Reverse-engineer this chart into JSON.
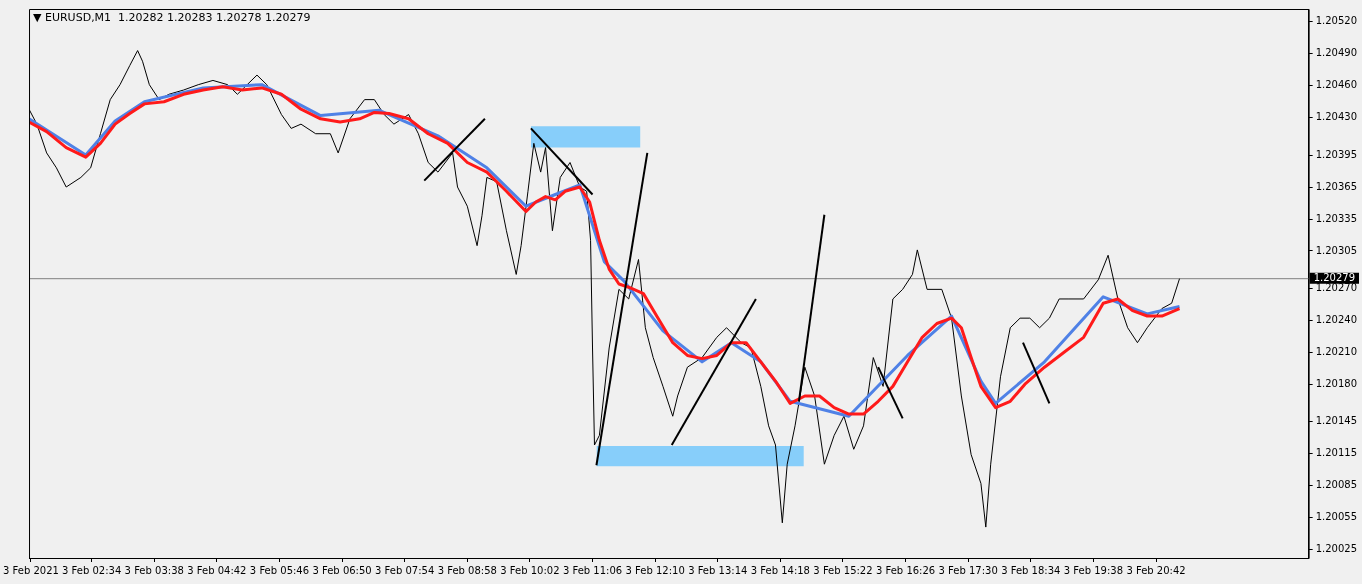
{
  "chart_data": {
    "type": "line",
    "title": "▼ EURUSD,M1  1.20282 1.20283 1.20278 1.20279",
    "xlim": [
      "2021-02-03T01:30",
      "2021-02-03T23:18"
    ],
    "ylim": [
      1.20017,
      1.20532
    ],
    "xticks": [
      {
        "value": "2021-02-03T01:32",
        "label": "3 Feb 2021"
      },
      {
        "value": "2021-02-03T02:34",
        "label": "3 Feb 02:34"
      },
      {
        "value": "2021-02-03T03:38",
        "label": "3 Feb 03:38"
      },
      {
        "value": "2021-02-03T04:42",
        "label": "3 Feb 04:42"
      },
      {
        "value": "2021-02-03T05:46",
        "label": "3 Feb 05:46"
      },
      {
        "value": "2021-02-03T06:50",
        "label": "3 Feb 06:50"
      },
      {
        "value": "2021-02-03T07:54",
        "label": "3 Feb 07:54"
      },
      {
        "value": "2021-02-03T08:58",
        "label": "3 Feb 08:58"
      },
      {
        "value": "2021-02-03T10:02",
        "label": "3 Feb 10:02"
      },
      {
        "value": "2021-02-03T11:06",
        "label": "3 Feb 11:06"
      },
      {
        "value": "2021-02-03T12:10",
        "label": "3 Feb 12:10"
      },
      {
        "value": "2021-02-03T13:14",
        "label": "3 Feb 13:14"
      },
      {
        "value": "2021-02-03T14:18",
        "label": "3 Feb 14:18"
      },
      {
        "value": "2021-02-03T15:22",
        "label": "3 Feb 15:22"
      },
      {
        "value": "2021-02-03T16:26",
        "label": "3 Feb 16:26"
      },
      {
        "value": "2021-02-03T17:30",
        "label": "3 Feb 17:30"
      },
      {
        "value": "2021-02-03T18:34",
        "label": "3 Feb 18:34"
      },
      {
        "value": "2021-02-03T19:38",
        "label": "3 Feb 19:38"
      },
      {
        "value": "2021-02-03T20:42",
        "label": "3 Feb 20:42"
      }
    ],
    "yticks": [
      {
        "value": 1.2052,
        "label": "1.20520"
      },
      {
        "value": 1.2049,
        "label": "1.20490"
      },
      {
        "value": 1.2046,
        "label": "1.20460"
      },
      {
        "value": 1.2043,
        "label": "1.20430"
      },
      {
        "value": 1.20395,
        "label": "1.20395"
      },
      {
        "value": 1.20365,
        "label": "1.20365"
      },
      {
        "value": 1.20335,
        "label": "1.20335"
      },
      {
        "value": 1.20305,
        "label": "1.20305"
      },
      {
        "value": 1.2027,
        "label": "1.20270"
      },
      {
        "value": 1.2024,
        "label": "1.20240"
      },
      {
        "value": 1.2021,
        "label": "1.20210"
      },
      {
        "value": 1.2018,
        "label": "1.20180"
      },
      {
        "value": 1.20145,
        "label": "1.20145"
      },
      {
        "value": 1.20115,
        "label": "1.20115"
      },
      {
        "value": 1.20085,
        "label": "1.20085"
      },
      {
        "value": 1.20055,
        "label": "1.20055"
      },
      {
        "value": 1.20025,
        "label": "1.20025"
      }
    ],
    "grid": false,
    "legend": false,
    "marker": "none",
    "line_style": "solid",
    "ref_lines": [
      {
        "axis": "y",
        "value": 1.20279,
        "label": "1.20279",
        "color": "#808080"
      }
    ],
    "series": [
      {
        "color": "#000000",
        "x": [
          "2021-02-03T01:30",
          "2021-02-03T01:38",
          "2021-02-03T01:48",
          "2021-02-03T01:58",
          "2021-02-03T02:08",
          "2021-02-03T02:23",
          "2021-02-03T02:33",
          "2021-02-03T02:43",
          "2021-02-03T02:53",
          "2021-02-03T03:03",
          "2021-02-03T03:13",
          "2021-02-03T03:21",
          "2021-02-03T03:26",
          "2021-02-03T03:33",
          "2021-02-03T03:43",
          "2021-02-03T03:53",
          "2021-02-03T04:08",
          "2021-02-03T04:23",
          "2021-02-03T04:38",
          "2021-02-03T04:53",
          "2021-02-03T05:03",
          "2021-02-03T05:13",
          "2021-02-03T05:23",
          "2021-02-03T05:33",
          "2021-02-03T05:48",
          "2021-02-03T05:58",
          "2021-02-03T06:08",
          "2021-02-03T06:23",
          "2021-02-03T06:38",
          "2021-02-03T06:46",
          "2021-02-03T06:58",
          "2021-02-03T07:13",
          "2021-02-03T07:23",
          "2021-02-03T07:33",
          "2021-02-03T07:43",
          "2021-02-03T07:58",
          "2021-02-03T08:08",
          "2021-02-03T08:18",
          "2021-02-03T08:28",
          "2021-02-03T08:43",
          "2021-02-03T08:48",
          "2021-02-03T08:58",
          "2021-02-03T09:08",
          "2021-02-03T09:13",
          "2021-02-03T09:18",
          "2021-02-03T09:28",
          "2021-02-03T09:38",
          "2021-02-03T09:48",
          "2021-02-03T09:53",
          "2021-02-03T10:00",
          "2021-02-03T10:06",
          "2021-02-03T10:13",
          "2021-02-03T10:18",
          "2021-02-03T10:25",
          "2021-02-03T10:33",
          "2021-02-03T10:43",
          "2021-02-03T10:53",
          "2021-02-03T11:00",
          "2021-02-03T11:04",
          "2021-02-03T11:06",
          "2021-02-03T11:08",
          "2021-02-03T11:13",
          "2021-02-03T11:23",
          "2021-02-03T11:33",
          "2021-02-03T11:43",
          "2021-02-03T11:53",
          "2021-02-03T12:00",
          "2021-02-03T12:08",
          "2021-02-03T12:18",
          "2021-02-03T12:28",
          "2021-02-03T12:33",
          "2021-02-03T12:43",
          "2021-02-03T12:58",
          "2021-02-03T13:13",
          "2021-02-03T13:23",
          "2021-02-03T13:38",
          "2021-02-03T13:48",
          "2021-02-03T13:58",
          "2021-02-03T14:06",
          "2021-02-03T14:13",
          "2021-02-03T14:20",
          "2021-02-03T14:25",
          "2021-02-03T14:33",
          "2021-02-03T14:43",
          "2021-02-03T14:53",
          "2021-02-03T15:03",
          "2021-02-03T15:13",
          "2021-02-03T15:23",
          "2021-02-03T15:33",
          "2021-02-03T15:43",
          "2021-02-03T15:53",
          "2021-02-03T16:03",
          "2021-02-03T16:13",
          "2021-02-03T16:23",
          "2021-02-03T16:33",
          "2021-02-03T16:38",
          "2021-02-03T16:48",
          "2021-02-03T17:03",
          "2021-02-03T17:13",
          "2021-02-03T17:23",
          "2021-02-03T17:33",
          "2021-02-03T17:43",
          "2021-02-03T17:48",
          "2021-02-03T17:53",
          "2021-02-03T18:03",
          "2021-02-03T18:13",
          "2021-02-03T18:23",
          "2021-02-03T18:33",
          "2021-02-03T18:43",
          "2021-02-03T18:53",
          "2021-02-03T19:03",
          "2021-02-03T19:13",
          "2021-02-03T19:28",
          "2021-02-03T19:43",
          "2021-02-03T19:53",
          "2021-02-03T20:03",
          "2021-02-03T20:13",
          "2021-02-03T20:23",
          "2021-02-03T20:33",
          "2021-02-03T20:48",
          "2021-02-03T20:58",
          "2021-02-03T21:06"
        ],
        "values": [
          1.20438,
          1.20424,
          1.20397,
          1.20383,
          1.20365,
          1.20374,
          1.20383,
          1.20415,
          1.20447,
          1.20461,
          1.20479,
          1.20493,
          1.20483,
          1.20461,
          1.20447,
          1.20452,
          1.20456,
          1.20461,
          1.20465,
          1.20461,
          1.20452,
          1.20461,
          1.2047,
          1.20461,
          1.20433,
          1.2042,
          1.20424,
          1.20415,
          1.20415,
          1.20397,
          1.20429,
          1.20447,
          1.20447,
          1.20433,
          1.20424,
          1.20433,
          1.20415,
          1.20388,
          1.20379,
          1.20397,
          1.20365,
          1.20347,
          1.2031,
          1.20338,
          1.20374,
          1.2037,
          1.20324,
          1.20283,
          1.2031,
          1.20361,
          1.20406,
          1.20379,
          1.20402,
          1.20324,
          1.20374,
          1.20388,
          1.20365,
          1.20361,
          1.20315,
          1.20214,
          1.20123,
          1.20132,
          1.20214,
          1.20269,
          1.2026,
          1.20297,
          1.20233,
          1.20205,
          1.20178,
          1.2015,
          1.20169,
          1.20196,
          1.20205,
          1.20224,
          1.20233,
          1.20219,
          1.20214,
          1.20178,
          1.20141,
          1.20123,
          1.2005,
          1.20105,
          1.20141,
          1.20196,
          1.20169,
          1.20105,
          1.20132,
          1.2015,
          1.20119,
          1.20141,
          1.20205,
          1.20178,
          1.2026,
          1.20269,
          1.20283,
          1.20306,
          1.20269,
          1.20269,
          1.20242,
          1.20169,
          1.20114,
          1.20087,
          1.20046,
          1.20105,
          1.20187,
          1.20233,
          1.20242,
          1.20242,
          1.20233,
          1.20242,
          1.2026,
          1.2026,
          1.2026,
          1.20278,
          1.20301,
          1.2026,
          1.20233,
          1.20219,
          1.20233,
          1.20251,
          1.20256,
          1.20279
        ]
      },
      {
        "color": "#4f81e6",
        "x": [
          "2021-02-03T01:30",
          "2021-02-03T02:28",
          "2021-02-03T02:58",
          "2021-02-03T03:28",
          "2021-02-03T04:28",
          "2021-02-03T05:28",
          "2021-02-03T06:28",
          "2021-02-03T07:28",
          "2021-02-03T08:28",
          "2021-02-03T09:18",
          "2021-02-03T09:58",
          "2021-02-03T10:28",
          "2021-02-03T10:53",
          "2021-02-03T11:18",
          "2021-02-03T11:38",
          "2021-02-03T12:18",
          "2021-02-03T12:58",
          "2021-02-03T13:28",
          "2021-02-03T13:58",
          "2021-02-03T14:28",
          "2021-02-03T15:28",
          "2021-02-03T16:28",
          "2021-02-03T17:13",
          "2021-02-03T17:43",
          "2021-02-03T17:58",
          "2021-02-03T18:48",
          "2021-02-03T19:48",
          "2021-02-03T20:33",
          "2021-02-03T21:06"
        ],
        "values": [
          1.20429,
          1.20395,
          1.20427,
          1.20445,
          1.20458,
          1.20461,
          1.20432,
          1.20437,
          1.20413,
          1.20383,
          1.20347,
          1.20358,
          1.20367,
          1.20295,
          1.20277,
          1.2023,
          1.20201,
          1.20219,
          1.20201,
          1.20164,
          1.2015,
          1.20207,
          1.20244,
          1.20183,
          1.20162,
          1.20201,
          1.20262,
          1.20246,
          1.20253
        ]
      },
      {
        "color": "#ff1a1a",
        "x": [
          "2021-02-03T01:30",
          "2021-02-03T01:48",
          "2021-02-03T02:08",
          "2021-02-03T02:28",
          "2021-02-03T02:43",
          "2021-02-03T02:58",
          "2021-02-03T03:13",
          "2021-02-03T03:28",
          "2021-02-03T03:48",
          "2021-02-03T04:08",
          "2021-02-03T04:28",
          "2021-02-03T04:48",
          "2021-02-03T05:08",
          "2021-02-03T05:28",
          "2021-02-03T05:48",
          "2021-02-03T06:08",
          "2021-02-03T06:28",
          "2021-02-03T06:48",
          "2021-02-03T07:08",
          "2021-02-03T07:23",
          "2021-02-03T07:38",
          "2021-02-03T07:58",
          "2021-02-03T08:18",
          "2021-02-03T08:38",
          "2021-02-03T08:58",
          "2021-02-03T09:18",
          "2021-02-03T09:38",
          "2021-02-03T09:58",
          "2021-02-03T10:08",
          "2021-02-03T10:18",
          "2021-02-03T10:28",
          "2021-02-03T10:38",
          "2021-02-03T10:53",
          "2021-02-03T11:03",
          "2021-02-03T11:13",
          "2021-02-03T11:23",
          "2021-02-03T11:33",
          "2021-02-03T11:43",
          "2021-02-03T11:58",
          "2021-02-03T12:13",
          "2021-02-03T12:28",
          "2021-02-03T12:43",
          "2021-02-03T12:58",
          "2021-02-03T13:13",
          "2021-02-03T13:28",
          "2021-02-03T13:43",
          "2021-02-03T13:58",
          "2021-02-03T14:13",
          "2021-02-03T14:28",
          "2021-02-03T14:43",
          "2021-02-03T14:58",
          "2021-02-03T15:13",
          "2021-02-03T15:28",
          "2021-02-03T15:43",
          "2021-02-03T15:58",
          "2021-02-03T16:13",
          "2021-02-03T16:28",
          "2021-02-03T16:43",
          "2021-02-03T16:58",
          "2021-02-03T17:13",
          "2021-02-03T17:23",
          "2021-02-03T17:33",
          "2021-02-03T17:43",
          "2021-02-03T17:58",
          "2021-02-03T18:13",
          "2021-02-03T18:28",
          "2021-02-03T18:48",
          "2021-02-03T19:08",
          "2021-02-03T19:28",
          "2021-02-03T19:48",
          "2021-02-03T20:03",
          "2021-02-03T20:18",
          "2021-02-03T20:33",
          "2021-02-03T20:48",
          "2021-02-03T21:06"
        ],
        "values": [
          1.20426,
          1.20417,
          1.20402,
          1.20393,
          1.20406,
          1.20424,
          1.20434,
          1.20443,
          1.20445,
          1.20452,
          1.20456,
          1.20459,
          1.20456,
          1.20458,
          1.20452,
          1.20438,
          1.20429,
          1.20426,
          1.20429,
          1.20435,
          1.20434,
          1.20429,
          1.20415,
          1.20406,
          1.20388,
          1.20379,
          1.20361,
          1.20342,
          1.20351,
          1.20356,
          1.20353,
          1.20361,
          1.20365,
          1.20351,
          1.20315,
          1.20288,
          1.20274,
          1.20271,
          1.20265,
          1.20242,
          1.20219,
          1.20207,
          1.20204,
          1.20207,
          1.20219,
          1.20219,
          1.20201,
          1.20183,
          1.20162,
          1.20169,
          1.20169,
          1.20158,
          1.20152,
          1.20152,
          1.20164,
          1.20178,
          1.20201,
          1.20224,
          1.20237,
          1.20242,
          1.20233,
          1.20205,
          1.20178,
          1.20158,
          1.20164,
          1.2018,
          1.20196,
          1.2021,
          1.20224,
          1.20256,
          1.2026,
          1.20249,
          1.20244,
          1.20244,
          1.20251
        ]
      },
      {
        "color": "#000000",
        "x": [
          "2021-02-03T08:14",
          "2021-02-03T09:16"
        ],
        "values": [
          1.20371,
          1.20429
        ]
      },
      {
        "color": "#000000",
        "x": [
          "2021-02-03T10:03",
          "2021-02-03T11:06"
        ],
        "values": [
          1.2042,
          1.20358
        ]
      },
      {
        "color": "#000000",
        "x": [
          "2021-02-03T11:10",
          "2021-02-03T12:02"
        ],
        "values": [
          1.20104,
          1.20397
        ]
      },
      {
        "color": "#000000",
        "x": [
          "2021-02-03T12:27",
          "2021-02-03T13:53"
        ],
        "values": [
          1.20123,
          1.2026
        ]
      },
      {
        "color": "#000000",
        "x": [
          "2021-02-03T14:37",
          "2021-02-03T15:03"
        ],
        "values": [
          1.20164,
          1.20339
        ]
      },
      {
        "color": "#000000",
        "x": [
          "2021-02-03T15:58",
          "2021-02-03T16:23"
        ],
        "values": [
          1.20196,
          1.20148
        ]
      },
      {
        "color": "#000000",
        "x": [
          "2021-02-03T18:26",
          "2021-02-03T18:53"
        ],
        "values": [
          1.20219,
          1.20162
        ]
      },
      {
        "color": "#87cefa",
        "x": [
          "2021-02-03T10:03",
          "2021-02-03T11:55"
        ],
        "values": [
          null,
          null
        ],
        "lower": [
          1.20402,
          1.20402
        ],
        "upper": [
          1.20422,
          1.20422
        ]
      },
      {
        "color": "#87cefa",
        "x": [
          "2021-02-03T11:10",
          "2021-02-03T14:42"
        ],
        "values": [
          null,
          null
        ],
        "lower": [
          1.20103,
          1.20103
        ],
        "upper": [
          1.20122,
          1.20122
        ]
      }
    ]
  }
}
